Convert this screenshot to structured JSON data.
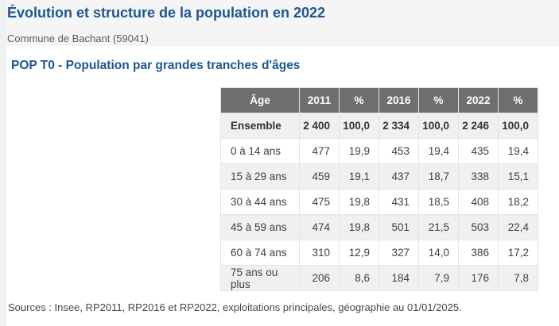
{
  "page": {
    "title": "Évolution et structure de la population en 2022",
    "subtitle": "Commune de Bachant (59041)",
    "section_title": "POP T0 - Population par grandes tranches d'âges",
    "sources": "Sources : Insee, RP2011, RP2016 et RP2022, exploitations principales, géographie au 01/01/2025."
  },
  "colors": {
    "accent_blue": "#1e5691",
    "table_header_bg": "#6f6f6f",
    "row_alt_bg": "#f0f0f0",
    "band_bg": "#f5f5f6",
    "subtitle_text": "#5a5a5a",
    "cell_text": "#404040"
  },
  "table": {
    "columns": [
      "Âge",
      "2011",
      "%",
      "2016",
      "%",
      "2022",
      "%"
    ],
    "rows": [
      {
        "label": "Ensemble",
        "bold": true,
        "values": [
          "2 400",
          "100,0",
          "2 334",
          "100,0",
          "2 246",
          "100,0"
        ]
      },
      {
        "label": "0 à 14 ans",
        "bold": false,
        "values": [
          "477",
          "19,9",
          "453",
          "19,4",
          "435",
          "19,4"
        ]
      },
      {
        "label": "15 à 29 ans",
        "bold": false,
        "values": [
          "459",
          "19,1",
          "437",
          "18,7",
          "338",
          "15,1"
        ]
      },
      {
        "label": "30 à 44 ans",
        "bold": false,
        "values": [
          "475",
          "19,8",
          "431",
          "18,5",
          "408",
          "18,2"
        ]
      },
      {
        "label": "45 à 59 ans",
        "bold": false,
        "values": [
          "474",
          "19,8",
          "501",
          "21,5",
          "503",
          "22,4"
        ]
      },
      {
        "label": "60 à 74 ans",
        "bold": false,
        "values": [
          "310",
          "12,9",
          "327",
          "14,0",
          "386",
          "17,2"
        ]
      },
      {
        "label": "75 ans ou plus",
        "bold": false,
        "values": [
          "206",
          "8,6",
          "184",
          "7,9",
          "176",
          "7,8"
        ]
      }
    ]
  }
}
